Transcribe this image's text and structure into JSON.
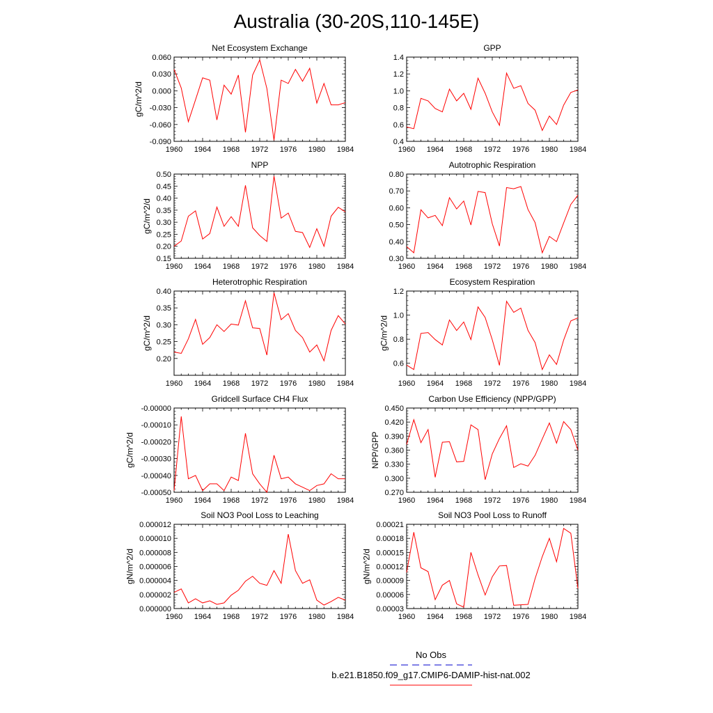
{
  "title": "Australia (30-20S,110-145E)",
  "line_color": "#ff0000",
  "obs_color": "#0000cc",
  "legend": {
    "obs_label": "No Obs",
    "model_label": "b.e21.B1850.f09_g17.CMIP6-DAMIP-hist-nat.002"
  },
  "chart_data": [
    {
      "type": "line",
      "title": "Net Ecosystem Exchange",
      "ylabel": "gC/m^2/d",
      "xlim": [
        1960,
        1984
      ],
      "ylim": [
        -0.09,
        0.06
      ],
      "xticks": [
        1960,
        1964,
        1968,
        1972,
        1976,
        1980,
        1984
      ],
      "yticks": [
        -0.09,
        -0.06,
        -0.03,
        0.0,
        0.03,
        0.06
      ],
      "ytick_labels": [
        "-0.090",
        "-0.060",
        "-0.030",
        "0.000",
        "0.030",
        "0.060"
      ],
      "x": [
        1960,
        1961,
        1962,
        1963,
        1964,
        1965,
        1966,
        1967,
        1968,
        1969,
        1970,
        1971,
        1972,
        1973,
        1974,
        1975,
        1976,
        1977,
        1978,
        1979,
        1980,
        1981,
        1982,
        1983,
        1984
      ],
      "series": [
        {
          "values": [
            0.038,
            0.005,
            -0.055,
            -0.016,
            0.023,
            0.019,
            -0.052,
            0.01,
            -0.006,
            0.028,
            -0.074,
            0.028,
            0.055,
            0.004,
            -0.088,
            0.019,
            0.013,
            0.038,
            0.017,
            0.04,
            -0.022,
            0.013,
            -0.025,
            -0.025,
            -0.021
          ]
        }
      ]
    },
    {
      "type": "line",
      "title": "GPP",
      "ylabel": "",
      "xlim": [
        1960,
        1984
      ],
      "ylim": [
        0.4,
        1.4
      ],
      "xticks": [
        1960,
        1964,
        1968,
        1972,
        1976,
        1980,
        1984
      ],
      "yticks": [
        0.4,
        0.6,
        0.8,
        1.0,
        1.2,
        1.4
      ],
      "ytick_labels": [
        "0.4",
        "0.6",
        "0.8",
        "1.0",
        "1.2",
        "1.4"
      ],
      "x": [
        1960,
        1961,
        1962,
        1963,
        1964,
        1965,
        1966,
        1967,
        1968,
        1969,
        1970,
        1971,
        1972,
        1973,
        1974,
        1975,
        1976,
        1977,
        1978,
        1979,
        1980,
        1981,
        1982,
        1983,
        1984
      ],
      "series": [
        {
          "values": [
            0.57,
            0.55,
            0.91,
            0.88,
            0.79,
            0.75,
            1.02,
            0.88,
            0.97,
            0.78,
            1.15,
            0.97,
            0.75,
            0.59,
            1.21,
            1.03,
            1.06,
            0.85,
            0.77,
            0.53,
            0.7,
            0.6,
            0.83,
            0.98,
            1.01
          ]
        }
      ]
    },
    {
      "type": "line",
      "title": "NPP",
      "ylabel": "gC/m^2/d",
      "xlim": [
        1960,
        1984
      ],
      "ylim": [
        0.15,
        0.5
      ],
      "xticks": [
        1960,
        1964,
        1968,
        1972,
        1976,
        1980,
        1984
      ],
      "yticks": [
        0.15,
        0.2,
        0.25,
        0.3,
        0.35,
        0.4,
        0.45,
        0.5
      ],
      "ytick_labels": [
        "0.15",
        "0.20",
        "0.25",
        "0.30",
        "0.35",
        "0.40",
        "0.45",
        "0.50"
      ],
      "x": [
        1960,
        1961,
        1962,
        1963,
        1964,
        1965,
        1966,
        1967,
        1968,
        1969,
        1970,
        1971,
        1972,
        1973,
        1974,
        1975,
        1976,
        1977,
        1978,
        1979,
        1980,
        1981,
        1982,
        1983,
        1984
      ],
      "series": [
        {
          "values": [
            0.2,
            0.222,
            0.325,
            0.347,
            0.23,
            0.253,
            0.363,
            0.283,
            0.323,
            0.283,
            0.453,
            0.277,
            0.245,
            0.22,
            0.492,
            0.317,
            0.338,
            0.262,
            0.257,
            0.195,
            0.273,
            0.2,
            0.325,
            0.362,
            0.343
          ]
        }
      ]
    },
    {
      "type": "line",
      "title": "Autotrophic Respiration",
      "ylabel": "",
      "xlim": [
        1960,
        1984
      ],
      "ylim": [
        0.3,
        0.8
      ],
      "xticks": [
        1960,
        1964,
        1968,
        1972,
        1976,
        1980,
        1984
      ],
      "yticks": [
        0.3,
        0.4,
        0.5,
        0.6,
        0.7,
        0.8
      ],
      "ytick_labels": [
        "0.30",
        "0.40",
        "0.50",
        "0.60",
        "0.70",
        "0.80"
      ],
      "x": [
        1960,
        1961,
        1962,
        1963,
        1964,
        1965,
        1966,
        1967,
        1968,
        1969,
        1970,
        1971,
        1972,
        1973,
        1974,
        1975,
        1976,
        1977,
        1978,
        1979,
        1980,
        1981,
        1982,
        1983,
        1984
      ],
      "series": [
        {
          "values": [
            0.37,
            0.333,
            0.588,
            0.54,
            0.555,
            0.494,
            0.66,
            0.593,
            0.64,
            0.498,
            0.697,
            0.69,
            0.505,
            0.373,
            0.72,
            0.713,
            0.726,
            0.59,
            0.512,
            0.333,
            0.43,
            0.399,
            0.51,
            0.62,
            0.675
          ]
        }
      ]
    },
    {
      "type": "line",
      "title": "Heterotrophic Respiration",
      "ylabel": "gC/m^2/d",
      "xlim": [
        1960,
        1984
      ],
      "ylim": [
        0.15,
        0.4
      ],
      "xticks": [
        1960,
        1964,
        1968,
        1972,
        1976,
        1980,
        1984
      ],
      "yticks": [
        0.2,
        0.25,
        0.3,
        0.35,
        0.4
      ],
      "ytick_labels": [
        "0.20",
        "0.25",
        "0.30",
        "0.35",
        "0.40"
      ],
      "x": [
        1960,
        1961,
        1962,
        1963,
        1964,
        1965,
        1966,
        1967,
        1968,
        1969,
        1970,
        1971,
        1972,
        1973,
        1974,
        1975,
        1976,
        1977,
        1978,
        1979,
        1980,
        1981,
        1982,
        1983,
        1984
      ],
      "series": [
        {
          "values": [
            0.219,
            0.215,
            0.258,
            0.316,
            0.242,
            0.262,
            0.3,
            0.28,
            0.302,
            0.299,
            0.371,
            0.291,
            0.289,
            0.21,
            0.395,
            0.315,
            0.333,
            0.283,
            0.262,
            0.219,
            0.24,
            0.193,
            0.283,
            0.327,
            0.302
          ]
        }
      ]
    },
    {
      "type": "line",
      "title": "Ecosystem Respiration",
      "ylabel": "gC/m^2/d",
      "xlim": [
        1960,
        1984
      ],
      "ylim": [
        0.5,
        1.2
      ],
      "xticks": [
        1960,
        1964,
        1968,
        1972,
        1976,
        1980,
        1984
      ],
      "yticks": [
        0.6,
        0.8,
        1.0,
        1.2
      ],
      "ytick_labels": [
        "0.6",
        "0.8",
        "1.0",
        "1.2"
      ],
      "x": [
        1960,
        1961,
        1962,
        1963,
        1964,
        1965,
        1966,
        1967,
        1968,
        1969,
        1970,
        1971,
        1972,
        1973,
        1974,
        1975,
        1976,
        1977,
        1978,
        1979,
        1980,
        1981,
        1982,
        1983,
        1984
      ],
      "series": [
        {
          "values": [
            0.585,
            0.548,
            0.848,
            0.855,
            0.797,
            0.752,
            0.96,
            0.872,
            0.943,
            0.797,
            1.068,
            0.98,
            0.795,
            0.583,
            1.115,
            1.023,
            1.058,
            0.873,
            0.772,
            0.548,
            0.67,
            0.59,
            0.793,
            0.952,
            0.978
          ]
        }
      ]
    },
    {
      "type": "line",
      "title": "Gridcell Surface CH4 Flux",
      "ylabel": "gC/m^2/d",
      "xlim": [
        1960,
        1984
      ],
      "ylim": [
        -0.0005,
        0.0
      ],
      "xticks": [
        1960,
        1964,
        1968,
        1972,
        1976,
        1980,
        1984
      ],
      "yticks": [
        -0.0005,
        -0.0004,
        -0.0003,
        -0.0002,
        -0.0001,
        0.0
      ],
      "ytick_labels": [
        "-0.00050",
        "-0.00040",
        "-0.00030",
        "-0.00020",
        "-0.00010",
        "-0.00000"
      ],
      "x": [
        1960,
        1961,
        1962,
        1963,
        1964,
        1965,
        1966,
        1967,
        1968,
        1969,
        1970,
        1971,
        1972,
        1973,
        1974,
        1975,
        1976,
        1977,
        1978,
        1979,
        1980,
        1981,
        1982,
        1983,
        1984
      ],
      "series": [
        {
          "values": [
            -0.00049,
            -5e-05,
            -0.00042,
            -0.0004,
            -0.00049,
            -0.00045,
            -0.00045,
            -0.00049,
            -0.00041,
            -0.00043,
            -0.00015,
            -0.00039,
            -0.00045,
            -0.0005,
            -0.00028,
            -0.00042,
            -0.00041,
            -0.00045,
            -0.00047,
            -0.00049,
            -0.00046,
            -0.00045,
            -0.00039,
            -0.00042,
            -0.00042
          ]
        }
      ]
    },
    {
      "type": "line",
      "title": "Carbon Use Efficiency (NPP/GPP)",
      "ylabel": "NPP/GPP",
      "xlim": [
        1960,
        1984
      ],
      "ylim": [
        0.27,
        0.45
      ],
      "xticks": [
        1960,
        1964,
        1968,
        1972,
        1976,
        1980,
        1984
      ],
      "yticks": [
        0.27,
        0.3,
        0.33,
        0.36,
        0.39,
        0.42,
        0.45
      ],
      "ytick_labels": [
        "0.270",
        "0.300",
        "0.330",
        "0.360",
        "0.390",
        "0.420",
        "0.450"
      ],
      "x": [
        1960,
        1961,
        1962,
        1963,
        1964,
        1965,
        1966,
        1967,
        1968,
        1969,
        1970,
        1971,
        1972,
        1973,
        1974,
        1975,
        1976,
        1977,
        1978,
        1979,
        1980,
        1981,
        1982,
        1983,
        1984
      ],
      "series": [
        {
          "values": [
            0.372,
            0.425,
            0.376,
            0.404,
            0.302,
            0.377,
            0.378,
            0.335,
            0.336,
            0.414,
            0.404,
            0.297,
            0.352,
            0.385,
            0.412,
            0.323,
            0.331,
            0.326,
            0.349,
            0.384,
            0.418,
            0.375,
            0.421,
            0.404,
            0.36
          ]
        }
      ]
    },
    {
      "type": "line",
      "title": "Soil NO3 Pool Loss to Leaching",
      "ylabel": "gN/m^2/d",
      "xlim": [
        1960,
        1984
      ],
      "ylim": [
        0.0,
        1.2e-05
      ],
      "xticks": [
        1960,
        1964,
        1968,
        1972,
        1976,
        1980,
        1984
      ],
      "yticks": [
        0.0,
        2e-06,
        4e-06,
        6e-06,
        8e-06,
        1e-05,
        1.2e-05
      ],
      "ytick_labels": [
        "0.000000",
        "0.000002",
        "0.000004",
        "0.000006",
        "0.000008",
        "0.000010",
        "0.000012"
      ],
      "x": [
        1960,
        1961,
        1962,
        1963,
        1964,
        1965,
        1966,
        1967,
        1968,
        1969,
        1970,
        1971,
        1972,
        1973,
        1974,
        1975,
        1976,
        1977,
        1978,
        1979,
        1980,
        1981,
        1982,
        1983,
        1984
      ],
      "series": [
        {
          "values": [
            2.3e-06,
            2.8e-06,
            8e-07,
            1.4e-06,
            8e-07,
            1.1e-06,
            6e-07,
            8e-07,
            1.9e-06,
            2.6e-06,
            3.9e-06,
            4.6e-06,
            3.6e-06,
            3.3e-06,
            5.4e-06,
            3.6e-06,
            1.06e-05,
            5.4e-06,
            3.6e-06,
            4.1e-06,
            1.2e-06,
            5e-07,
            1e-06,
            1.6e-06,
            1.2e-06
          ]
        }
      ]
    },
    {
      "type": "line",
      "title": "Soil NO3 Pool Loss to Runoff",
      "ylabel": "gN/m^2/d",
      "xlim": [
        1960,
        1984
      ],
      "ylim": [
        3e-05,
        0.00021
      ],
      "xticks": [
        1960,
        1964,
        1968,
        1972,
        1976,
        1980,
        1984
      ],
      "yticks": [
        3e-05,
        6e-05,
        9e-05,
        0.00012,
        0.00015,
        0.00018,
        0.00021
      ],
      "ytick_labels": [
        "0.00003",
        "0.00006",
        "0.00009",
        "0.00012",
        "0.00015",
        "0.00018",
        "0.00021"
      ],
      "x": [
        1960,
        1961,
        1962,
        1963,
        1964,
        1965,
        1966,
        1967,
        1968,
        1969,
        1970,
        1971,
        1972,
        1973,
        1974,
        1975,
        1976,
        1977,
        1978,
        1979,
        1980,
        1981,
        1982,
        1983,
        1984
      ],
      "series": [
        {
          "values": [
            0.000107,
            0.000193,
            0.000117,
            0.000109,
            4.9e-05,
            8e-05,
            9e-05,
            4e-05,
            3.3e-05,
            0.00015,
            0.000102,
            5.9e-05,
            9.8e-05,
            0.000121,
            0.000122,
            3.7e-05,
            3.8e-05,
            3.9e-05,
            9.4e-05,
            0.000141,
            0.00018,
            0.00013,
            0.000201,
            0.000191,
            7.3e-05
          ]
        }
      ]
    }
  ]
}
